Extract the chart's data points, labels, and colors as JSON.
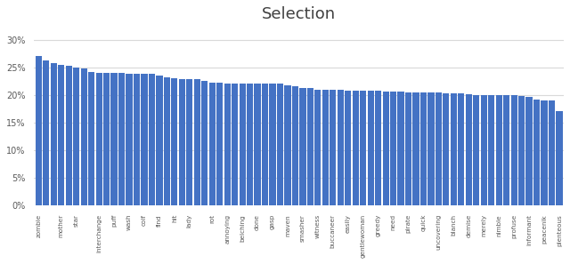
{
  "title": "Selection",
  "categories": [
    "zombie",
    "mother",
    "star",
    "interchange",
    "puff",
    "wash",
    "coif",
    "find",
    "hit",
    "lady",
    "rot",
    "annoying",
    "belching",
    "done",
    "gasp",
    "maven",
    "smasher",
    "witness",
    "buccaneer",
    "easily",
    "gentlewoman",
    "greedy",
    "need",
    "pirate",
    "quick",
    "uncovering",
    "blanch",
    "demise",
    "merely",
    "nimble",
    "profuse",
    "informant",
    "peacenik",
    "plenteous"
  ],
  "all_labels": [
    "zombie",
    "",
    "",
    "mother",
    "",
    "star",
    "",
    "",
    "interchange",
    "",
    "puff",
    "",
    "wash",
    "",
    "coif",
    "",
    "find",
    "",
    "hit",
    "",
    "lady",
    "",
    "",
    "rot",
    "",
    "annoying",
    "",
    "belching",
    "",
    "done",
    "",
    "gasp",
    "",
    "maven",
    "",
    "smasher",
    "",
    "witness",
    "",
    "buccaneer",
    "",
    "easily",
    "",
    "gentlewoman",
    "",
    "greedy",
    "",
    "need",
    "",
    "pirate",
    "",
    "quick",
    "",
    "uncovering",
    "",
    "blanch",
    "",
    "demise",
    "",
    "merely",
    "",
    "nimble",
    "",
    "profuse",
    "",
    "informant",
    "",
    "peacenik",
    "",
    "plenteous"
  ],
  "values": [
    0.27,
    0.263,
    0.258,
    0.255,
    0.253,
    0.25,
    0.248,
    0.242,
    0.24,
    0.24,
    0.24,
    0.24,
    0.238,
    0.238,
    0.238,
    0.238,
    0.235,
    0.232,
    0.23,
    0.228,
    0.228,
    0.228,
    0.225,
    0.222,
    0.222,
    0.22,
    0.22,
    0.22,
    0.22,
    0.22,
    0.22,
    0.22,
    0.22,
    0.218,
    0.215,
    0.213,
    0.212,
    0.21,
    0.21,
    0.21,
    0.21,
    0.208,
    0.208,
    0.207,
    0.207,
    0.207,
    0.206,
    0.206,
    0.206,
    0.205,
    0.205,
    0.205,
    0.205,
    0.204,
    0.203,
    0.203,
    0.202,
    0.201,
    0.2,
    0.2,
    0.2,
    0.2,
    0.2,
    0.199,
    0.198,
    0.196,
    0.192,
    0.19,
    0.19,
    0.17
  ],
  "bar_color": "#4472C4",
  "background_color": "#FFFFFF",
  "grid_color": "#D9D9D9",
  "title_fontsize": 13,
  "ylim": [
    0,
    0.32
  ],
  "yticks": [
    0.0,
    0.05,
    0.1,
    0.15,
    0.2,
    0.25,
    0.3
  ],
  "labeled_indices": [
    0,
    3,
    5,
    8,
    10,
    12,
    14,
    16,
    18,
    20,
    23,
    25,
    27,
    29,
    31,
    33,
    35,
    37,
    39,
    41,
    43,
    45,
    47,
    49,
    51,
    53,
    55,
    57,
    59,
    61,
    63,
    65,
    67,
    69
  ],
  "labeled_words": [
    "zombie",
    "mother",
    "star",
    "interchange",
    "puff",
    "wash",
    "coif",
    "find",
    "hit",
    "lady",
    "rot",
    "annoying",
    "belching",
    "done",
    "gasp",
    "maven",
    "smasher",
    "witness",
    "buccaneer",
    "easily",
    "gentlewoman",
    "greedy",
    "need",
    "pirate",
    "quick",
    "uncovering",
    "blanch",
    "demise",
    "merely",
    "nimble",
    "profuse",
    "informant",
    "peacenik",
    "plenteous"
  ]
}
